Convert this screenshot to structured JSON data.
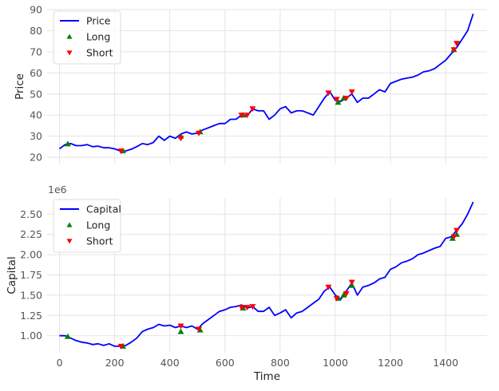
{
  "chart_data": [
    {
      "type": "line",
      "xlabel": "",
      "ylabel": "Price",
      "xlim": [
        -45,
        1550
      ],
      "ylim": [
        17,
        90
      ],
      "x_ticks": [
        0,
        200,
        400,
        600,
        800,
        1000,
        1200,
        1400
      ],
      "x_tick_labels": [
        "",
        "",
        "",
        "",
        "",
        "",
        "",
        ""
      ],
      "y_ticks": [
        20,
        30,
        40,
        50,
        60,
        70,
        80,
        90
      ],
      "y_tick_labels": [
        "20",
        "30",
        "40",
        "50",
        "60",
        "70",
        "80",
        "90"
      ],
      "offset_text": "",
      "grid": true,
      "legend_position": "top-left",
      "series": [
        {
          "name": "Price",
          "color": "#0000ff",
          "x": [
            0,
            20,
            40,
            60,
            80,
            100,
            120,
            140,
            160,
            180,
            200,
            220,
            240,
            260,
            280,
            300,
            320,
            340,
            360,
            380,
            400,
            420,
            440,
            460,
            480,
            500,
            520,
            540,
            560,
            580,
            600,
            620,
            640,
            660,
            680,
            700,
            720,
            740,
            760,
            780,
            800,
            820,
            840,
            860,
            880,
            900,
            920,
            940,
            960,
            980,
            1000,
            1020,
            1040,
            1060,
            1080,
            1100,
            1120,
            1140,
            1160,
            1180,
            1200,
            1220,
            1240,
            1260,
            1280,
            1300,
            1320,
            1340,
            1360,
            1380,
            1400,
            1420,
            1440,
            1460,
            1480,
            1500
          ],
          "y": [
            24,
            26,
            26.5,
            25.5,
            25.5,
            26,
            25,
            25.3,
            24.5,
            24.5,
            24,
            23,
            23,
            23.8,
            25,
            26.5,
            26,
            27,
            30,
            28,
            30,
            29,
            31,
            32,
            31,
            31.5,
            33,
            34,
            35,
            36,
            36,
            38,
            38,
            40,
            39.5,
            43,
            42,
            42,
            38,
            40,
            43,
            44,
            41,
            42,
            42,
            41,
            40,
            44,
            48,
            51,
            47,
            46.5,
            48,
            50,
            46,
            48,
            48,
            50,
            52,
            51,
            55,
            56,
            57,
            57.5,
            58,
            59,
            60.5,
            61,
            62,
            64,
            66,
            69,
            72,
            76,
            80,
            88
          ]
        }
      ],
      "markers": [
        {
          "name": "Long",
          "color": "#008000",
          "symbol": "triangle-up",
          "x": [
            30,
            230,
            440,
            510,
            665,
            1010,
            1030,
            1430
          ],
          "y": [
            26.3,
            23,
            30,
            32,
            40,
            46,
            48,
            71
          ]
        },
        {
          "name": "Short",
          "color": "#ff0000",
          "symbol": "triangle-down",
          "x": [
            223,
            440,
            505,
            660,
            680,
            700,
            975,
            1005,
            1040,
            1060,
            1430,
            1440
          ],
          "y": [
            23,
            29,
            31.5,
            40,
            40,
            43,
            50.5,
            47.5,
            48,
            51,
            71,
            74
          ]
        }
      ]
    },
    {
      "type": "line",
      "xlabel": "Time",
      "ylabel": "Capital",
      "xlim": [
        -45,
        1550
      ],
      "ylim": [
        0.79,
        2.7
      ],
      "x_ticks": [
        0,
        200,
        400,
        600,
        800,
        1000,
        1200,
        1400
      ],
      "x_tick_labels": [
        "0",
        "200",
        "400",
        "600",
        "800",
        "1000",
        "1200",
        "1400"
      ],
      "y_ticks": [
        1.0,
        1.25,
        1.5,
        1.75,
        2.0,
        2.25,
        2.5
      ],
      "y_tick_labels": [
        "1.00",
        "1.25",
        "1.50",
        "1.75",
        "2.00",
        "2.25",
        "2.50"
      ],
      "offset_text": "1e6",
      "grid": true,
      "legend_position": "top-left",
      "series": [
        {
          "name": "Capital",
          "color": "#0000ff",
          "x": [
            0,
            20,
            40,
            60,
            80,
            100,
            120,
            140,
            160,
            180,
            200,
            220,
            240,
            260,
            280,
            300,
            320,
            340,
            360,
            380,
            400,
            420,
            440,
            460,
            480,
            500,
            520,
            540,
            560,
            580,
            600,
            620,
            640,
            660,
            680,
            700,
            720,
            740,
            760,
            780,
            800,
            820,
            840,
            860,
            880,
            900,
            920,
            940,
            960,
            980,
            1000,
            1020,
            1040,
            1060,
            1080,
            1100,
            1120,
            1140,
            1160,
            1180,
            1200,
            1220,
            1240,
            1260,
            1280,
            1300,
            1320,
            1340,
            1360,
            1380,
            1400,
            1420,
            1440,
            1460,
            1480,
            1500
          ],
          "y": [
            1.0,
            1.0,
            0.97,
            0.94,
            0.92,
            0.91,
            0.89,
            0.9,
            0.88,
            0.9,
            0.87,
            0.87,
            0.88,
            0.92,
            0.97,
            1.05,
            1.08,
            1.1,
            1.14,
            1.12,
            1.13,
            1.1,
            1.12,
            1.1,
            1.12,
            1.08,
            1.15,
            1.2,
            1.25,
            1.3,
            1.32,
            1.35,
            1.36,
            1.38,
            1.34,
            1.36,
            1.3,
            1.3,
            1.35,
            1.25,
            1.28,
            1.32,
            1.22,
            1.28,
            1.3,
            1.35,
            1.4,
            1.45,
            1.55,
            1.6,
            1.5,
            1.45,
            1.55,
            1.65,
            1.5,
            1.6,
            1.62,
            1.65,
            1.7,
            1.72,
            1.82,
            1.85,
            1.9,
            1.92,
            1.95,
            2.0,
            2.02,
            2.05,
            2.08,
            2.1,
            2.2,
            2.22,
            2.3,
            2.38,
            2.5,
            2.65
          ]
        }
      ],
      "markers": [
        {
          "name": "Long",
          "color": "#008000",
          "symbol": "triangle-up",
          "x": [
            30,
            230,
            440,
            510,
            665,
            1010,
            1030,
            1060,
            1425,
            1440
          ],
          "y": [
            0.99,
            0.87,
            1.05,
            1.07,
            1.34,
            1.46,
            1.5,
            1.62,
            2.2,
            2.25
          ]
        },
        {
          "name": "Short",
          "color": "#ff0000",
          "symbol": "triangle-down",
          "x": [
            223,
            440,
            505,
            660,
            680,
            700,
            975,
            1005,
            1040,
            1060,
            1430,
            1440
          ],
          "y": [
            0.87,
            1.12,
            1.08,
            1.35,
            1.35,
            1.36,
            1.6,
            1.46,
            1.52,
            1.66,
            2.22,
            2.3
          ]
        }
      ]
    }
  ]
}
